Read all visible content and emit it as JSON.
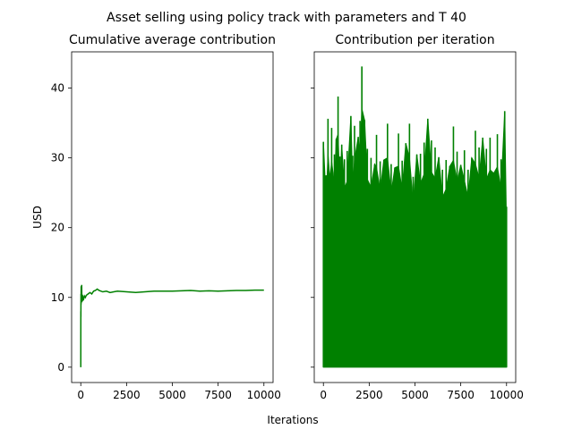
{
  "figure": {
    "suptitle": "Asset selling using policy track with parameters  and T 40",
    "xlabel": "Iterations",
    "ylabel": "USD",
    "line_color": "#008000"
  },
  "chart_data": [
    {
      "type": "line",
      "title": "Cumulative average contribution",
      "xlabel": "Iterations",
      "ylabel": "USD",
      "xlim": [
        -500,
        10500
      ],
      "ylim": [
        -2.2,
        45.2
      ],
      "xticks": [
        0,
        2500,
        5000,
        7500,
        10000
      ],
      "yticks": [
        0,
        10,
        20,
        30,
        40
      ],
      "grid": false,
      "series": [
        {
          "color": "#008000",
          "x": [
            0,
            3,
            6,
            10,
            15,
            20,
            30,
            40,
            50,
            60,
            80,
            100,
            130,
            160,
            200,
            250,
            300,
            400,
            500,
            600,
            700,
            800,
            900,
            1000,
            1200,
            1400,
            1600,
            1800,
            2000,
            2500,
            3000,
            3500,
            4000,
            4500,
            5000,
            5500,
            6000,
            6500,
            7000,
            7500,
            8000,
            8500,
            9000,
            9500,
            10000
          ],
          "values": [
            0.0,
            8.0,
            7.2,
            10.5,
            9.0,
            11.6,
            11.2,
            10.0,
            11.8,
            9.3,
            10.4,
            9.5,
            10.0,
            9.8,
            10.2,
            10.0,
            10.3,
            10.5,
            10.7,
            10.5,
            10.9,
            11.0,
            11.2,
            11.0,
            10.8,
            10.9,
            10.7,
            10.8,
            10.9,
            10.8,
            10.7,
            10.8,
            10.9,
            10.9,
            10.9,
            10.95,
            11.0,
            10.9,
            10.95,
            10.9,
            10.95,
            11.0,
            11.0,
            11.05,
            11.05
          ]
        }
      ]
    },
    {
      "type": "line",
      "title": "Contribution per iteration",
      "xlabel": "Iterations",
      "xlim": [
        -500,
        10500
      ],
      "ylim": [
        -2.2,
        45.2
      ],
      "xticks": [
        0,
        2500,
        5000,
        7500,
        10000
      ],
      "yticks": [
        0,
        10,
        20,
        30,
        40
      ],
      "sharey": true,
      "grid": false,
      "series": [
        {
          "color": "#008000",
          "baseline": 0,
          "spike_x": [
            0,
            150,
            250,
            350,
            450,
            600,
            700,
            800,
            900,
            1000,
            1150,
            1300,
            1500,
            1600,
            1700,
            1900,
            2000,
            2100,
            2250,
            2400,
            2600,
            2800,
            2900,
            3100,
            3300,
            3500,
            3700,
            3900,
            4100,
            4300,
            4500,
            4700,
            4900,
            5100,
            5300,
            5500,
            5700,
            5900,
            6100,
            6300,
            6500,
            6700,
            6900,
            7100,
            7300,
            7500,
            7700,
            7900,
            8100,
            8300,
            8500,
            8700,
            8900,
            9100,
            9300,
            9500,
            9700,
            9900,
            10000
          ],
          "spike_values": [
            32.3,
            27.5,
            35.6,
            27.0,
            34.3,
            30.5,
            32.7,
            38.8,
            30.2,
            31.9,
            29.8,
            31.0,
            36.0,
            30.3,
            34.6,
            33.0,
            35.3,
            43.1,
            35.4,
            31.3,
            30.0,
            29.1,
            33.3,
            29.5,
            29.7,
            34.9,
            29.1,
            28.6,
            33.5,
            29.6,
            32.1,
            34.9,
            27.3,
            30.5,
            30.6,
            32.2,
            35.6,
            32.5,
            31.5,
            30.1,
            28.3,
            29.7,
            28.8,
            34.5,
            30.9,
            29.0,
            31.1,
            28.3,
            30.0,
            33.9,
            31.5,
            32.9,
            31.3,
            32.9,
            27.8,
            33.4,
            29.8,
            36.7,
            23.0
          ]
        }
      ]
    }
  ]
}
